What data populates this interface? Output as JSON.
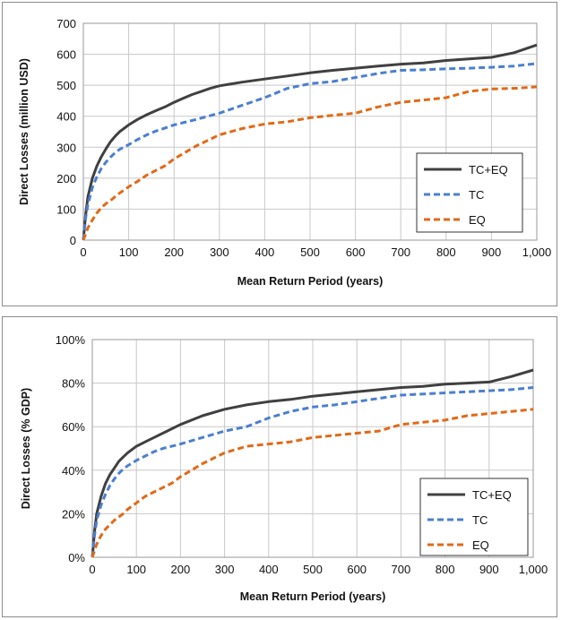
{
  "chart_data": [
    {
      "type": "line",
      "xlabel": "Mean Return Period (years)",
      "ylabel": "Direct Losses (million USD)",
      "xlim": [
        0,
        1000
      ],
      "ylim": [
        0,
        700
      ],
      "x_ticks": [
        0,
        100,
        200,
        300,
        400,
        500,
        600,
        700,
        800,
        900,
        1000
      ],
      "x_tick_labels": [
        "0",
        "100",
        "200",
        "300",
        "400",
        "500",
        "600",
        "700",
        "800",
        "900",
        "1,000"
      ],
      "y_ticks": [
        0,
        100,
        200,
        300,
        400,
        500,
        600,
        700
      ],
      "y_tick_labels": [
        "0",
        "100",
        "200",
        "300",
        "400",
        "500",
        "600",
        "700"
      ],
      "grid": true,
      "legend_position": "right",
      "series": [
        {
          "name": "TC+EQ",
          "color": "#404040",
          "style": "solid",
          "x": [
            0,
            5,
            10,
            20,
            30,
            40,
            50,
            60,
            70,
            80,
            100,
            120,
            140,
            160,
            180,
            200,
            220,
            240,
            260,
            280,
            300,
            350,
            400,
            450,
            500,
            550,
            600,
            650,
            700,
            750,
            800,
            850,
            900,
            950,
            1000
          ],
          "values": [
            0,
            80,
            140,
            200,
            240,
            270,
            295,
            318,
            335,
            350,
            372,
            390,
            405,
            418,
            430,
            445,
            458,
            470,
            480,
            490,
            498,
            510,
            520,
            530,
            540,
            548,
            555,
            562,
            568,
            572,
            580,
            585,
            590,
            605,
            630
          ]
        },
        {
          "name": "TC",
          "color": "#4a7fd0",
          "style": "dashed",
          "x": [
            0,
            5,
            10,
            20,
            30,
            40,
            50,
            60,
            70,
            80,
            100,
            120,
            140,
            160,
            180,
            200,
            250,
            300,
            350,
            400,
            450,
            500,
            550,
            600,
            650,
            700,
            750,
            800,
            850,
            900,
            950,
            1000
          ],
          "values": [
            0,
            70,
            115,
            170,
            205,
            232,
            252,
            268,
            282,
            293,
            308,
            325,
            340,
            352,
            362,
            372,
            390,
            410,
            435,
            460,
            490,
            505,
            512,
            525,
            538,
            548,
            550,
            553,
            555,
            558,
            562,
            570
          ]
        },
        {
          "name": "EQ",
          "color": "#e06a17",
          "style": "dashed",
          "x": [
            0,
            10,
            20,
            30,
            40,
            50,
            60,
            70,
            80,
            100,
            120,
            140,
            160,
            180,
            200,
            250,
            300,
            350,
            400,
            450,
            500,
            550,
            600,
            650,
            700,
            750,
            800,
            850,
            900,
            950,
            1000
          ],
          "values": [
            0,
            40,
            65,
            88,
            105,
            118,
            128,
            140,
            152,
            172,
            190,
            210,
            225,
            240,
            262,
            305,
            340,
            360,
            375,
            382,
            395,
            403,
            410,
            430,
            445,
            452,
            460,
            480,
            488,
            490,
            495
          ]
        }
      ]
    },
    {
      "type": "line",
      "xlabel": "Mean Return Period (years)",
      "ylabel": "Direct Losses (% GDP)",
      "xlim": [
        0,
        1000
      ],
      "ylim": [
        0,
        100
      ],
      "x_ticks": [
        0,
        100,
        200,
        300,
        400,
        500,
        600,
        700,
        800,
        900,
        1000
      ],
      "x_tick_labels": [
        "0",
        "100",
        "200",
        "300",
        "400",
        "500",
        "600",
        "700",
        "800",
        "900",
        "1,000"
      ],
      "y_ticks": [
        0,
        20,
        40,
        60,
        80,
        100
      ],
      "y_tick_labels": [
        "0%",
        "20%",
        "40%",
        "60%",
        "80%",
        "100%"
      ],
      "grid": true,
      "legend_position": "bottom-right",
      "series": [
        {
          "name": "TC+EQ",
          "color": "#404040",
          "style": "solid",
          "x": [
            0,
            5,
            10,
            20,
            30,
            40,
            50,
            60,
            70,
            80,
            100,
            120,
            140,
            160,
            180,
            200,
            250,
            300,
            350,
            400,
            450,
            500,
            550,
            600,
            650,
            700,
            750,
            800,
            850,
            900,
            950,
            1000
          ],
          "values": [
            0,
            12,
            20,
            28,
            34,
            38,
            41,
            44,
            46,
            48,
            51,
            53,
            55,
            57,
            59,
            61,
            65,
            68,
            70,
            71.5,
            72.5,
            74,
            75,
            76,
            77,
            78,
            78.5,
            79.5,
            80,
            80.5,
            83,
            86
          ]
        },
        {
          "name": "TC",
          "color": "#4a7fd0",
          "style": "dashed",
          "x": [
            0,
            5,
            10,
            20,
            30,
            40,
            50,
            60,
            70,
            80,
            100,
            120,
            140,
            160,
            180,
            200,
            250,
            300,
            350,
            400,
            450,
            500,
            550,
            600,
            650,
            700,
            750,
            800,
            850,
            900,
            950,
            1000
          ],
          "values": [
            0,
            10,
            17,
            24,
            29,
            33,
            36,
            38.5,
            40.5,
            42,
            44.5,
            46.5,
            48.5,
            50,
            51,
            52,
            55,
            58,
            60,
            64,
            67,
            69,
            70,
            71.5,
            73,
            74.5,
            75,
            75.5,
            76,
            76.5,
            77,
            78
          ]
        },
        {
          "name": "EQ",
          "color": "#e06a17",
          "style": "dashed",
          "x": [
            0,
            10,
            20,
            30,
            40,
            50,
            60,
            70,
            80,
            100,
            120,
            140,
            160,
            180,
            200,
            250,
            300,
            350,
            400,
            450,
            500,
            550,
            600,
            650,
            700,
            750,
            800,
            850,
            900,
            950,
            1000
          ],
          "values": [
            0,
            6,
            10,
            13,
            15,
            17,
            18.5,
            20,
            22,
            25,
            28,
            30,
            32,
            34,
            37,
            43,
            48,
            51,
            52,
            53,
            55,
            56,
            57,
            58,
            61,
            62,
            63,
            65,
            66,
            67,
            68
          ]
        }
      ]
    }
  ]
}
